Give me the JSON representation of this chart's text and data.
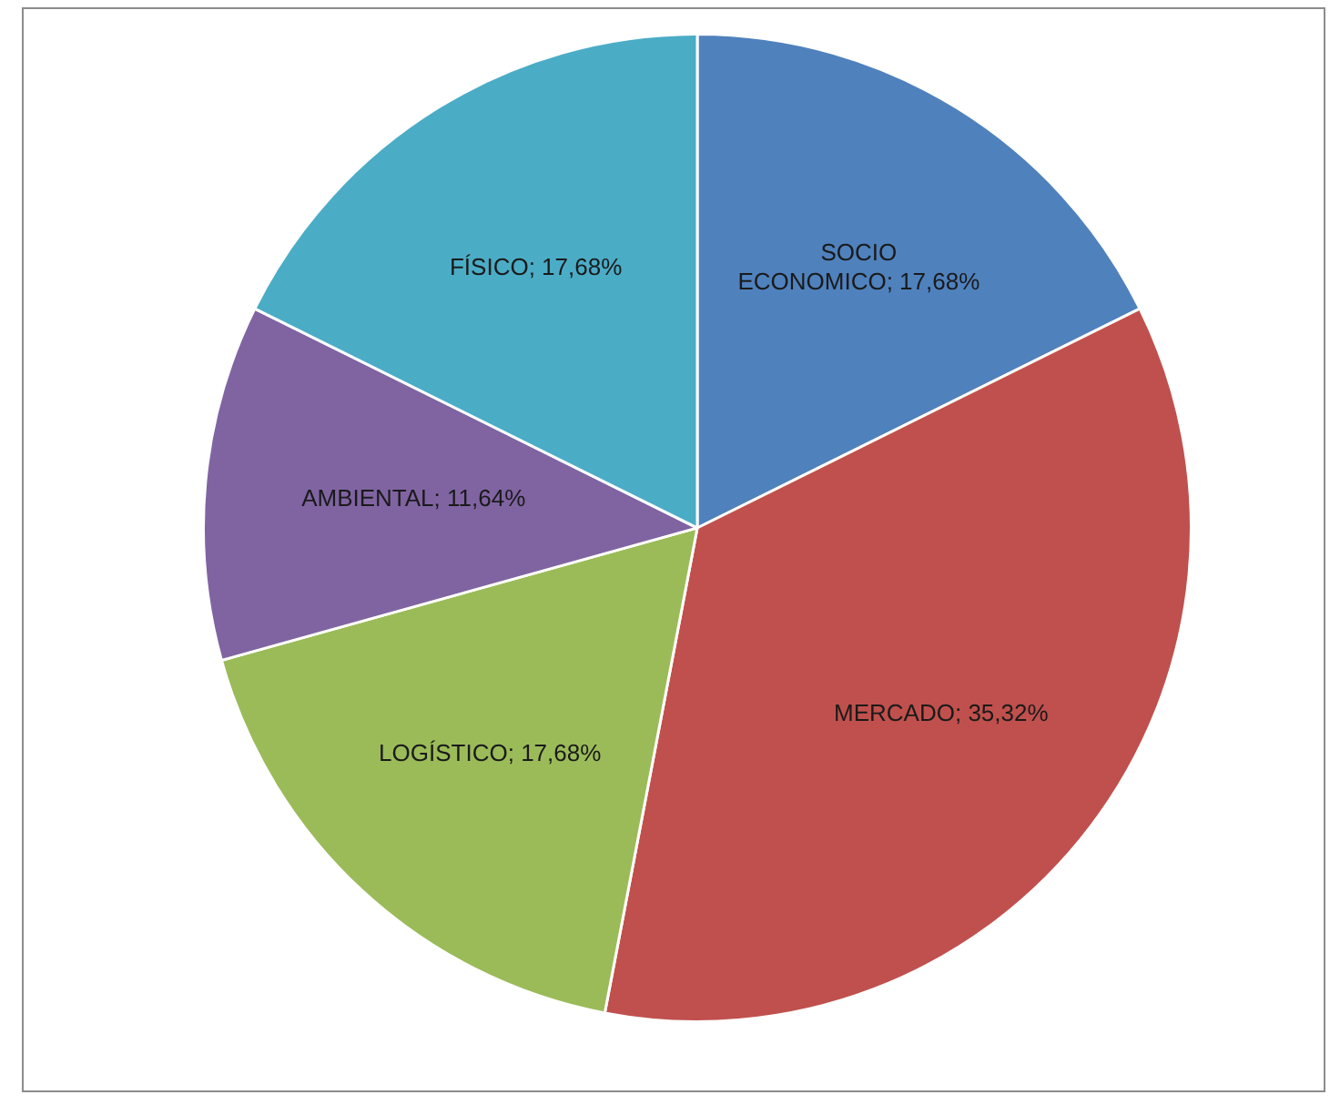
{
  "chart_data": {
    "type": "pie",
    "categories": [
      "SOCIO ECONOMICO",
      "MERCADO",
      "LOGÍSTICO",
      "AMBIENTAL",
      "FÍSICO"
    ],
    "values": [
      17.68,
      35.32,
      17.68,
      11.64,
      17.68
    ],
    "value_labels": [
      "17,68%",
      "35,32%",
      "17,68%",
      "11,64%",
      "17,68%"
    ],
    "colors": [
      "#4f81bd",
      "#c0504d",
      "#9bbb59",
      "#8064a2",
      "#4bacc6"
    ],
    "legend": false
  }
}
